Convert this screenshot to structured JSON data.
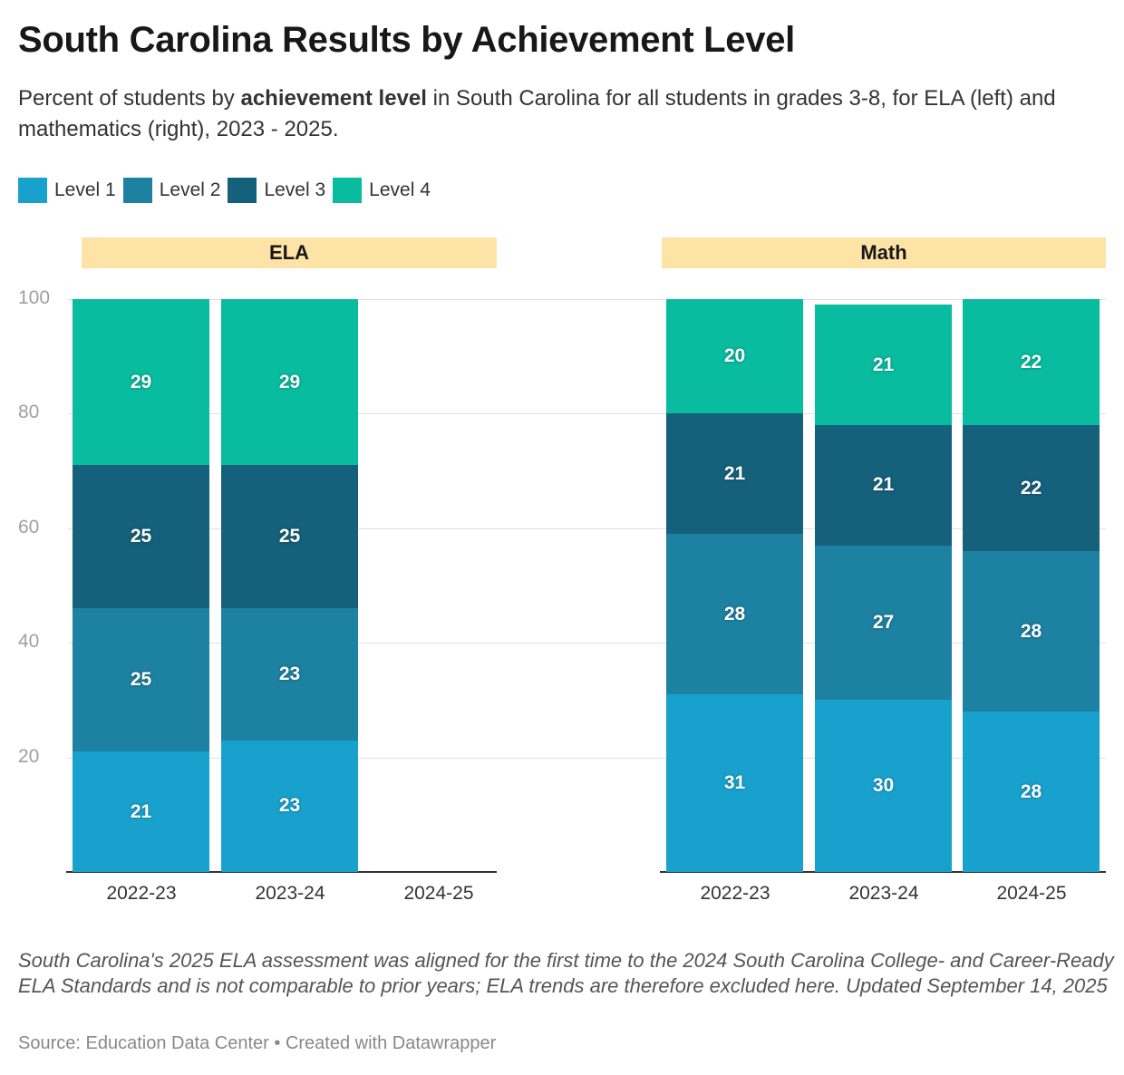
{
  "title": "South Carolina Results by Achievement Level",
  "subtitle": {
    "pre": "Percent of students by ",
    "bold": "achievement level",
    "post": " in South Carolina for all students in grades 3-8, for ELA (left) and mathematics (right), 2023 - 2025."
  },
  "footnote": "South Carolina's 2025 ELA assessment was aligned for the first time to the 2024 South Carolina College- and Career-Ready ELA Standards and is not comparable to prior years; ELA trends are therefore excluded here. Updated September 14, 2025",
  "source": "Source: Education Data Center • Created with Datawrapper",
  "chart_data": {
    "type": "bar",
    "stacked": true,
    "legend": [
      "Level 1",
      "Level 2",
      "Level 3",
      "Level 4"
    ],
    "colors": [
      "#18a1cd",
      "#1d81a2",
      "#15607a",
      "#09bb9f"
    ],
    "ylim": [
      0,
      100
    ],
    "yticks": [
      "100",
      "80",
      "60",
      "40",
      "20"
    ],
    "panels": [
      {
        "title": "ELA",
        "categories": [
          "2022-23",
          "2023-24",
          "2024-25"
        ],
        "series": [
          {
            "name": "Level 1",
            "values": [
              21,
              23,
              null
            ]
          },
          {
            "name": "Level 2",
            "values": [
              25,
              23,
              null
            ]
          },
          {
            "name": "Level 3",
            "values": [
              25,
              25,
              null
            ]
          },
          {
            "name": "Level 4",
            "values": [
              29,
              29,
              null
            ]
          }
        ]
      },
      {
        "title": "Math",
        "categories": [
          "2022-23",
          "2023-24",
          "2024-25"
        ],
        "series": [
          {
            "name": "Level 1",
            "values": [
              31,
              30,
              28
            ]
          },
          {
            "name": "Level 2",
            "values": [
              28,
              27,
              28
            ]
          },
          {
            "name": "Level 3",
            "values": [
              21,
              21,
              22
            ]
          },
          {
            "name": "Level 4",
            "values": [
              20,
              21,
              22
            ]
          }
        ]
      }
    ]
  }
}
